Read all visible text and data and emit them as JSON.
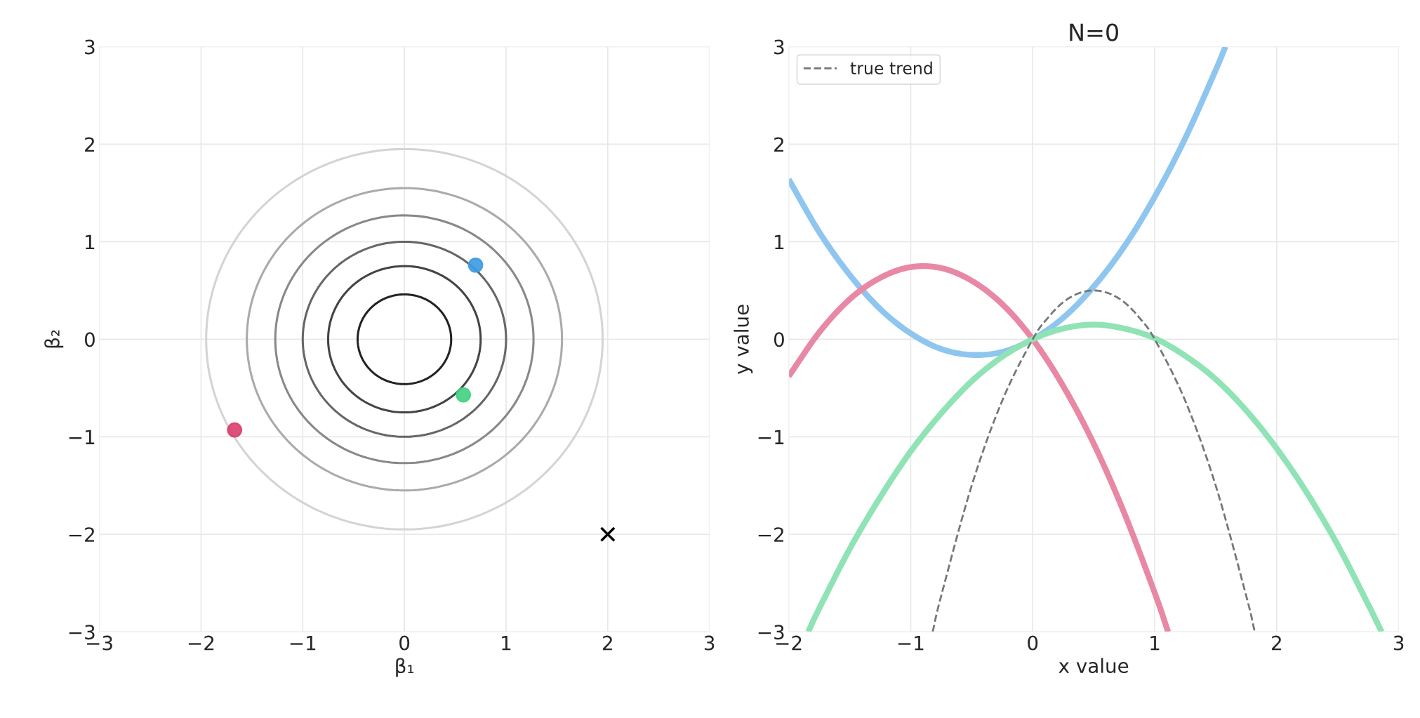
{
  "chart_data": [
    {
      "type": "scatter",
      "xlabel": "β₁",
      "ylabel": "β₂",
      "xlim": [
        -3,
        3
      ],
      "ylim": [
        -3,
        3
      ],
      "xticks": [
        -3,
        -2,
        -1,
        0,
        1,
        2,
        3
      ],
      "yticks": [
        -3,
        -2,
        -1,
        0,
        1,
        2,
        3
      ],
      "grid": true,
      "legend": false,
      "series": [
        {
          "type": "scatter",
          "marker": "circle",
          "colors": [
            "#3b9ae1",
            "#3fd07f",
            "#d93f6b"
          ],
          "x": [
            0.7,
            0.58,
            -1.67
          ],
          "values": [
            0.76,
            -0.57,
            -0.93
          ]
        },
        {
          "type": "scatter",
          "marker": "cross",
          "color": "#000000",
          "x": [
            2
          ],
          "values": [
            -2
          ]
        }
      ]
    },
    {
      "type": "line",
      "title": "N=0",
      "xlabel": "x value",
      "ylabel": "y value",
      "xlim": [
        -2,
        3
      ],
      "ylim": [
        -3,
        3
      ],
      "xticks": [
        -2,
        -1,
        0,
        1,
        2,
        3
      ],
      "yticks": [
        -3,
        -2,
        -1,
        0,
        1,
        2,
        3
      ],
      "grid": true,
      "legend": "top left",
      "series": [
        {
          "color": "#8ec6ef",
          "x": [
            -2,
            -1.75,
            -1.5,
            -1.25,
            -1,
            -0.75,
            -0.5,
            -0.25,
            0,
            0.25,
            0.5,
            0.75,
            1,
            1.25,
            1.5,
            1.58
          ],
          "values": [
            1.64,
            1.1,
            0.66,
            0.31,
            0.06,
            -0.1,
            -0.16,
            -0.13,
            0,
            0.22,
            0.54,
            0.95,
            1.46,
            2.06,
            2.76,
            3.0
          ]
        },
        {
          "color": "#e888a5",
          "x": [
            -2,
            -1.75,
            -1.5,
            -1.25,
            -1,
            -0.75,
            -0.5,
            -0.25,
            0,
            0.25,
            0.5,
            0.75,
            1,
            1.11
          ],
          "values": [
            -0.38,
            0.07,
            0.41,
            0.63,
            0.74,
            0.73,
            0.6,
            0.36,
            0,
            -0.48,
            -1.07,
            -1.78,
            -2.6,
            -3.0
          ]
        },
        {
          "color": "#8fe3b4",
          "x": [
            -1.84,
            -1.75,
            -1.5,
            -1.25,
            -1,
            -0.75,
            -0.5,
            -0.25,
            0,
            0.25,
            0.5,
            0.75,
            1,
            1.25,
            1.5,
            1.75,
            2,
            2.25,
            2.5,
            2.75,
            2.86
          ],
          "values": [
            -3.0,
            -2.76,
            -2.15,
            -1.62,
            -1.15,
            -0.76,
            -0.43,
            -0.18,
            0,
            0.11,
            0.15,
            0.11,
            0.01,
            -0.17,
            -0.41,
            -0.73,
            -1.12,
            -1.58,
            -2.11,
            -2.72,
            -3.0
          ]
        },
        {
          "name": "true trend",
          "color": "#777777",
          "line_style": "dashed",
          "x": [
            -0.82,
            -0.75,
            -0.5,
            -0.25,
            0,
            0.125,
            0.25,
            0.375,
            0.5,
            0.625,
            0.75,
            0.875,
            1,
            1.25,
            1.5,
            1.75,
            1.82
          ],
          "values": [
            -3.0,
            -2.63,
            -1.5,
            -0.63,
            0,
            0.22,
            0.38,
            0.47,
            0.5,
            0.47,
            0.38,
            0.22,
            0,
            -0.63,
            -1.5,
            -2.63,
            -3.0
          ]
        }
      ]
    }
  ]
}
